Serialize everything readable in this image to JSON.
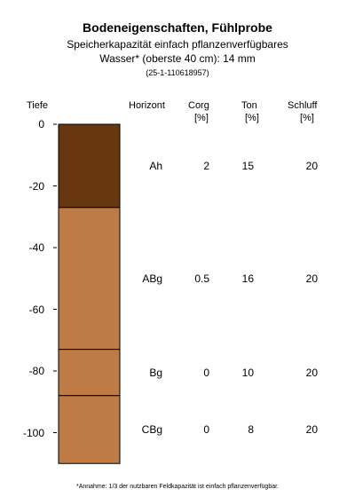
{
  "header": {
    "title": "Bodeneigenschaften, Fühlprobe",
    "subtitle_line1": "Speicherkapazität einfach pflanzenverfügbares",
    "subtitle_line2": "Wasser* (oberste 40 cm): 14 mm",
    "sample_id": "(25-1-110618957)"
  },
  "columns": {
    "depth": "Tiefe",
    "horizon": "Horizont",
    "corg": "Corg",
    "corg_unit": "[%]",
    "ton": "Ton",
    "ton_unit": "[%]",
    "schluff": "Schluff",
    "schluff_unit": "[%]"
  },
  "chart_data": {
    "type": "table",
    "ylabel": "Tiefe",
    "ylim": [
      0,
      -110
    ],
    "y_ticks": [
      "0",
      "-20",
      "-40",
      "-60",
      "-80",
      "-100"
    ],
    "layers": [
      {
        "horizon": "Ah",
        "top": 0,
        "bottom": -27,
        "corg": "2",
        "ton": "15",
        "schluff": "20",
        "color": "#673710"
      },
      {
        "horizon": "ABg",
        "top": -27,
        "bottom": -73,
        "corg": "0.5",
        "ton": "16",
        "schluff": "20",
        "color": "#bf7b45"
      },
      {
        "horizon": "Bg",
        "top": -73,
        "bottom": -88,
        "corg": "0",
        "ton": "10",
        "schluff": "20",
        "color": "#bf7b45"
      },
      {
        "horizon": "CBg",
        "top": -88,
        "bottom": -110,
        "corg": "0",
        "ton": "8",
        "schluff": "20",
        "color": "#bf7b45"
      }
    ]
  },
  "footnote": "*Annahme: 1/3 der nutzbaren Feldkapazität ist einfach pflanzenverfügbar."
}
